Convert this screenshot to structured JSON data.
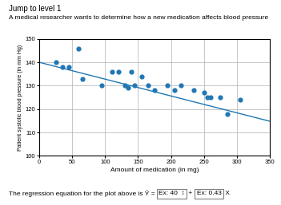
{
  "chart_data": {
    "type": "scatter",
    "title": "Jump to level 1",
    "subtitle": "A medical researcher wants to determine how a new medication affects blood pressure",
    "xlabel": "Amount of medication (in mg)",
    "ylabel": "Patient systolic blood pressure (in mm Hg)",
    "xlim": [
      0,
      350
    ],
    "ylim": [
      100,
      150
    ],
    "xticks": [
      0,
      50,
      100,
      150,
      200,
      250,
      300,
      350
    ],
    "yticks": [
      100,
      110,
      120,
      130,
      140,
      150
    ],
    "grid": true,
    "series": [
      {
        "type": "scatter",
        "marker": "circle",
        "x": [
          25,
          35,
          45,
          60,
          65,
          95,
          110,
          120,
          130,
          135,
          140,
          145,
          155,
          165,
          175,
          195,
          205,
          215,
          235,
          250,
          255,
          260,
          275,
          285,
          305
        ],
        "values": [
          140,
          138,
          138,
          146,
          133,
          130,
          136,
          136,
          130,
          129,
          136,
          130,
          134,
          130,
          128,
          130,
          128,
          130,
          128,
          127,
          125,
          125,
          125,
          118,
          124
        ]
      },
      {
        "type": "line",
        "line_style": "solid",
        "x": [
          0,
          350
        ],
        "values": [
          140.0,
          114.8
        ]
      }
    ],
    "annotations": [
      "The regression equation for the plot above is Ŷ = ",
      "Ex: 40",
      "↕",
      " + ",
      "Ex: 0.43",
      " X"
    ]
  }
}
